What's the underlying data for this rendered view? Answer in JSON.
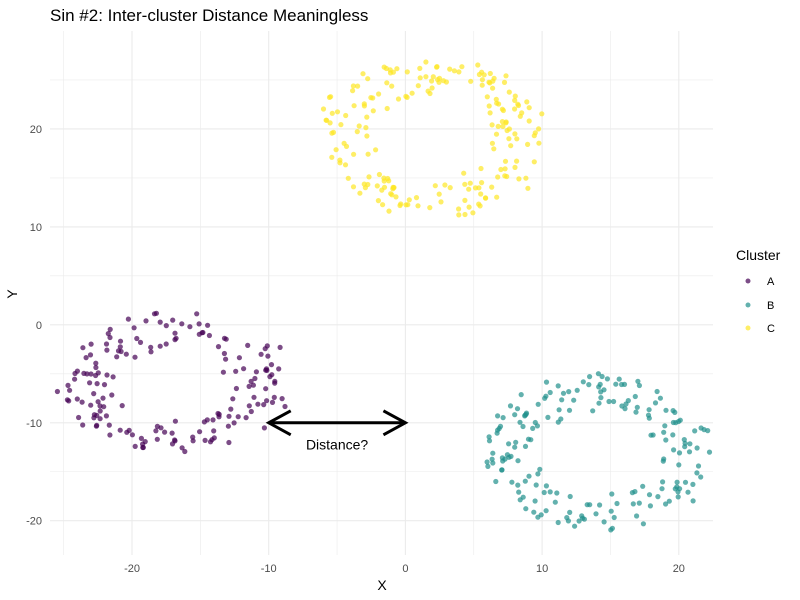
{
  "chart_data": {
    "type": "scatter",
    "title": "Sin #2: Inter-cluster Distance Meaningless",
    "xlabel": "X",
    "ylabel": "Y",
    "xlim": [
      -26,
      22.5
    ],
    "ylim": [
      -23.5,
      30
    ],
    "x_ticks": [
      -20,
      -10,
      0,
      10,
      20
    ],
    "y_ticks": [
      -20,
      -10,
      0,
      10,
      20
    ],
    "x_tick_labels": [
      "-20",
      "-10",
      "0",
      "10",
      "20"
    ],
    "y_tick_labels": [
      "-20",
      "-10",
      "0",
      "10",
      "20"
    ],
    "grid": true,
    "legend": {
      "title": "Cluster",
      "position": "right"
    },
    "series": [
      {
        "name": "A",
        "color": "#440154",
        "center": [
          -17,
          -6
        ],
        "radius": [
          8,
          7
        ],
        "count": 170,
        "seed": 11
      },
      {
        "name": "B",
        "color": "#21908C",
        "center": [
          14,
          -13
        ],
        "radius": [
          8,
          8
        ],
        "count": 190,
        "seed": 23
      },
      {
        "name": "C",
        "color": "#FDE725",
        "center": [
          2,
          19
        ],
        "radius": [
          8,
          8
        ],
        "count": 200,
        "seed": 37
      }
    ],
    "annotation": {
      "text": "Distance?",
      "arrow_from": [
        -10,
        -10
      ],
      "arrow_to": [
        0,
        -10
      ],
      "label_at": [
        -5,
        -12.2
      ]
    }
  }
}
